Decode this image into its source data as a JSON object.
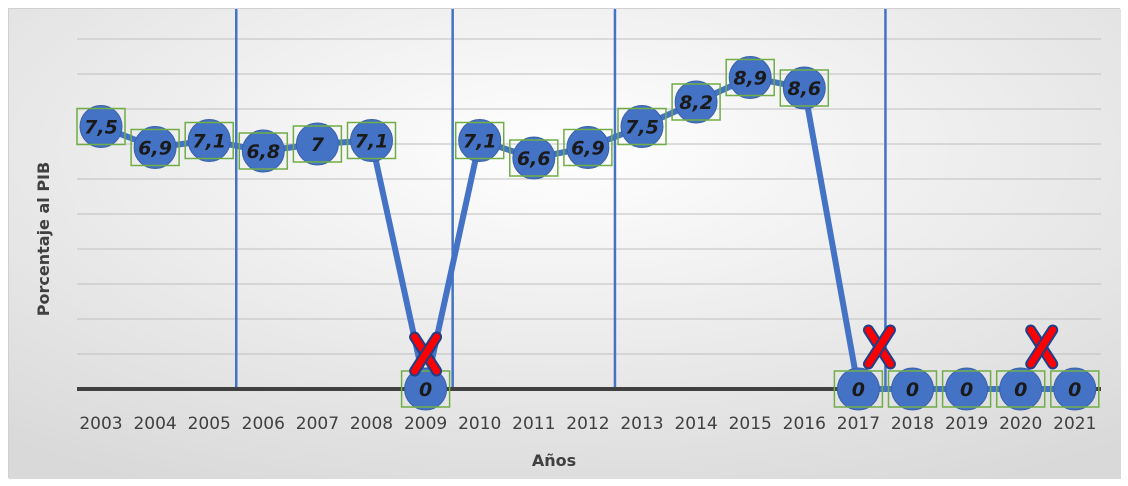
{
  "chart_data": {
    "type": "line",
    "title": "",
    "xlabel": "Años",
    "ylabel": "Porcentaje al PIB",
    "categories": [
      "2003",
      "2004",
      "2005",
      "2006",
      "2007",
      "2008",
      "2009",
      "2010",
      "2011",
      "2012",
      "2013",
      "2014",
      "2015",
      "2016",
      "2017",
      "2018",
      "2019",
      "2020",
      "2021"
    ],
    "series": [
      {
        "values": [
          7.5,
          6.9,
          7.1,
          6.8,
          7,
          7.1,
          0,
          7.1,
          6.6,
          6.9,
          7.5,
          8.2,
          8.9,
          8.6,
          0,
          0,
          0,
          0,
          0
        ]
      }
    ],
    "data_labels": [
      "7,5",
      "6,9",
      "7,1",
      "6,8",
      "7",
      "7,1",
      "0",
      "7,1",
      "6,6",
      "6,9",
      "7,5",
      "8,2",
      "8,9",
      "8,6",
      "0",
      "0",
      "0",
      "0",
      "0"
    ],
    "ylim": [
      0,
      10
    ],
    "grid": true,
    "legend": "none",
    "separators_after": [
      "2005",
      "2009",
      "2012",
      "2017"
    ],
    "x_marks_near": [
      "2009",
      "2017",
      "2020"
    ],
    "colors": {
      "line": "#4472c4",
      "marker": "#4472c4",
      "label_box": "#70ad47",
      "x_mark": "#ff0000",
      "grid": "#bfbfbf",
      "axis": "#404040"
    }
  }
}
